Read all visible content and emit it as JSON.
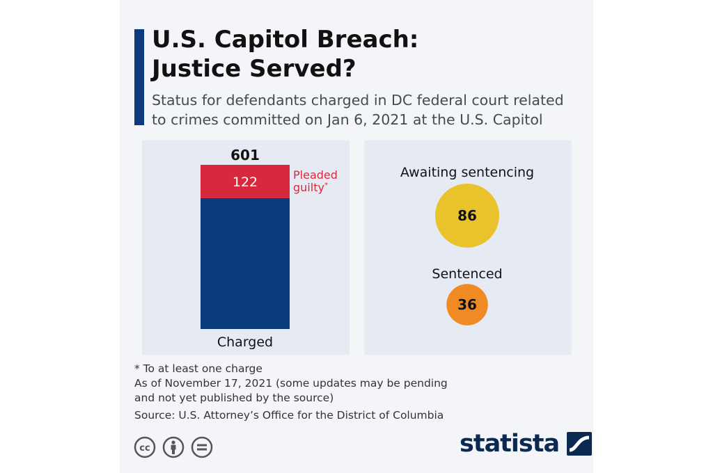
{
  "header": {
    "title_line1": "U.S. Capitol Breach:",
    "title_line2": "Justice Served?",
    "subtitle_line1": "Status for defendants charged in DC federal court related",
    "subtitle_line2": "to crimes committed on Jan 6, 2021 at the U.S. Capitol"
  },
  "chart_data": [
    {
      "type": "bar",
      "categories": [
        "Charged"
      ],
      "total": 601,
      "series": [
        {
          "name": "Pleaded guilty",
          "name_suffix": "*",
          "values": [
            122
          ],
          "color": "#d8283e"
        },
        {
          "name": "",
          "values": [
            479
          ],
          "color": "#0b3a7d"
        }
      ],
      "total_label": "601",
      "segment_label": "122",
      "category_label": "Charged"
    },
    {
      "type": "bubble",
      "items": [
        {
          "label": "Awaiting sentencing",
          "value": 86,
          "value_label": "86",
          "color": "#e9c22c"
        },
        {
          "label": "Sentenced",
          "value": 36,
          "value_label": "36",
          "color": "#ef8a25"
        }
      ]
    }
  ],
  "footnotes": {
    "asterisk_note": "* To at least one charge",
    "date_note_line1": "As of November 17, 2021 (some updates may be pending",
    "date_note_line2": "and not yet published by the source)",
    "source": "Source: U.S. Attorney’s Office for the District of Columbia"
  },
  "license_icons": [
    "cc-icon",
    "attribution-icon",
    "noderivatives-icon"
  ],
  "logo": {
    "text": "statista",
    "color": "#0b2a52"
  }
}
